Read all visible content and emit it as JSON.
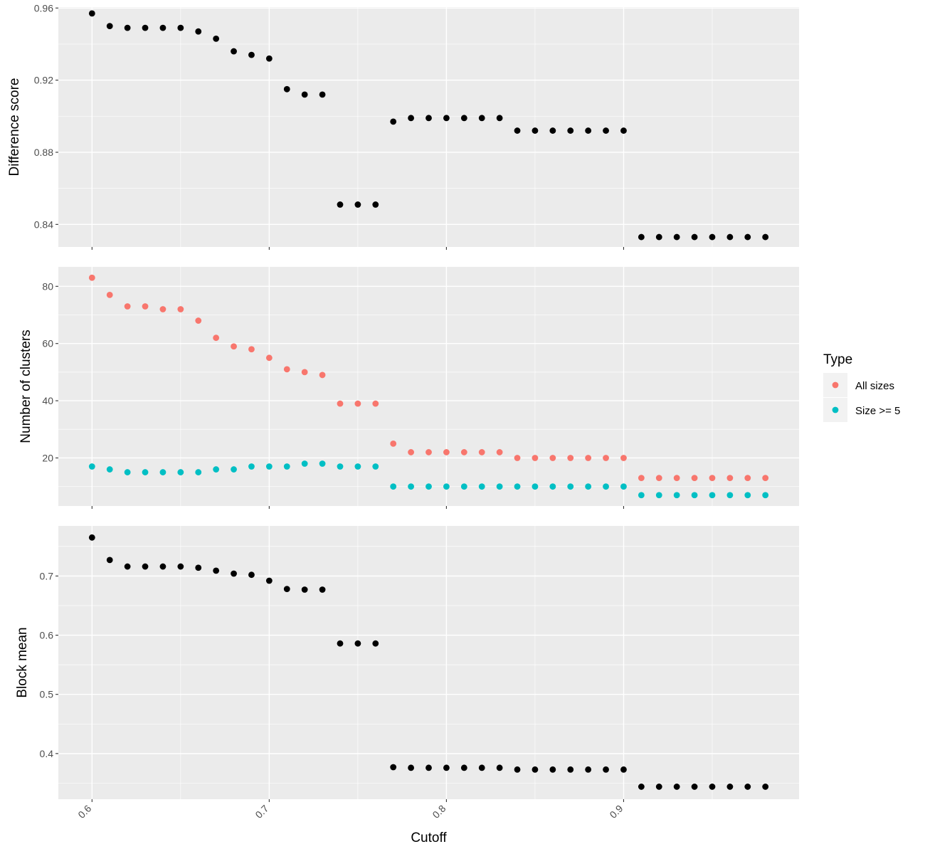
{
  "chart_data": [
    {
      "type": "scatter",
      "ylabel": "Difference score",
      "x": [
        0.6,
        0.61,
        0.62,
        0.63,
        0.64,
        0.65,
        0.66,
        0.67,
        0.68,
        0.69,
        0.7,
        0.71,
        0.72,
        0.73,
        0.74,
        0.75,
        0.76,
        0.77,
        0.78,
        0.79,
        0.8,
        0.81,
        0.82,
        0.83,
        0.84,
        0.85,
        0.86,
        0.87,
        0.88,
        0.89,
        0.9,
        0.91,
        0.92,
        0.93,
        0.94,
        0.95,
        0.96,
        0.97,
        0.98
      ],
      "series": [
        {
          "color": "#000000",
          "values": [
            0.957,
            0.95,
            0.949,
            0.949,
            0.949,
            0.949,
            0.947,
            0.943,
            0.936,
            0.934,
            0.932,
            0.915,
            0.912,
            0.912,
            0.851,
            0.851,
            0.851,
            0.897,
            0.899,
            0.899,
            0.899,
            0.899,
            0.899,
            0.899,
            0.892,
            0.892,
            0.892,
            0.892,
            0.892,
            0.892,
            0.892,
            0.833,
            0.833,
            0.833,
            0.833,
            0.833,
            0.833,
            0.833,
            0.833
          ]
        }
      ],
      "ylim": [
        0.8275,
        0.9605
      ],
      "yticks": [
        0.84,
        0.88,
        0.92,
        0.96
      ],
      "ytick_labels": [
        "0.84",
        "0.88",
        "0.92",
        "0.96"
      ]
    },
    {
      "type": "scatter",
      "ylabel": "Number of clusters",
      "x": [
        0.6,
        0.61,
        0.62,
        0.63,
        0.64,
        0.65,
        0.66,
        0.67,
        0.68,
        0.69,
        0.7,
        0.71,
        0.72,
        0.73,
        0.74,
        0.75,
        0.76,
        0.77,
        0.78,
        0.79,
        0.8,
        0.81,
        0.82,
        0.83,
        0.84,
        0.85,
        0.86,
        0.87,
        0.88,
        0.89,
        0.9,
        0.91,
        0.92,
        0.93,
        0.94,
        0.95,
        0.96,
        0.97,
        0.98
      ],
      "series": [
        {
          "name": "All sizes",
          "color": "#F8766D",
          "values": [
            83,
            77,
            73,
            73,
            72,
            72,
            68,
            62,
            59,
            58,
            55,
            51,
            50,
            49,
            39,
            39,
            39,
            25,
            22,
            22,
            22,
            22,
            22,
            22,
            20,
            20,
            20,
            20,
            20,
            20,
            20,
            13,
            13,
            13,
            13,
            13,
            13,
            13,
            13
          ]
        },
        {
          "name": "Size >= 5",
          "color": "#00BFC4",
          "values": [
            17,
            16,
            15,
            15,
            15,
            15,
            15,
            16,
            16,
            17,
            17,
            17,
            18,
            18,
            17,
            17,
            17,
            10,
            10,
            10,
            10,
            10,
            10,
            10,
            10,
            10,
            10,
            10,
            10,
            10,
            10,
            7,
            7,
            7,
            7,
            7,
            7,
            7,
            7
          ]
        }
      ],
      "ylim": [
        3.2,
        86.8
      ],
      "yticks": [
        20,
        40,
        60,
        80
      ],
      "ytick_labels": [
        "20",
        "40",
        "60",
        "80"
      ]
    },
    {
      "type": "scatter",
      "ylabel": "Block mean",
      "xlabel": "Cutoff",
      "x": [
        0.6,
        0.61,
        0.62,
        0.63,
        0.64,
        0.65,
        0.66,
        0.67,
        0.68,
        0.69,
        0.7,
        0.71,
        0.72,
        0.73,
        0.74,
        0.75,
        0.76,
        0.77,
        0.78,
        0.79,
        0.8,
        0.81,
        0.82,
        0.83,
        0.84,
        0.85,
        0.86,
        0.87,
        0.88,
        0.89,
        0.9,
        0.91,
        0.92,
        0.93,
        0.94,
        0.95,
        0.96,
        0.97,
        0.98
      ],
      "series": [
        {
          "color": "#000000",
          "values": [
            0.765,
            0.727,
            0.716,
            0.716,
            0.716,
            0.716,
            0.714,
            0.709,
            0.704,
            0.702,
            0.692,
            0.678,
            0.677,
            0.677,
            0.586,
            0.586,
            0.586,
            0.377,
            0.376,
            0.376,
            0.376,
            0.376,
            0.376,
            0.376,
            0.373,
            0.373,
            0.373,
            0.373,
            0.373,
            0.373,
            0.373,
            0.344,
            0.344,
            0.344,
            0.344,
            0.344,
            0.344,
            0.344,
            0.344
          ]
        }
      ],
      "ylim": [
        0.3229,
        0.7846
      ],
      "yticks": [
        0.4,
        0.5,
        0.6,
        0.7
      ],
      "ytick_labels": [
        "0.4",
        "0.5",
        "0.6",
        "0.7"
      ]
    }
  ],
  "shared_x": {
    "label": "Cutoff",
    "xlim": [
      0.581,
      0.999
    ],
    "ticks": [
      0.6,
      0.7,
      0.8,
      0.9
    ],
    "tick_labels": [
      "0.6",
      "0.7",
      "0.8",
      "0.9"
    ],
    "tick_label_rotation": -45
  },
  "legend": {
    "title": "Type",
    "placement": "right",
    "entries": [
      {
        "label": "All sizes",
        "color": "#F8766D"
      },
      {
        "label": "Size >= 5",
        "color": "#00BFC4"
      }
    ]
  },
  "grid": true
}
